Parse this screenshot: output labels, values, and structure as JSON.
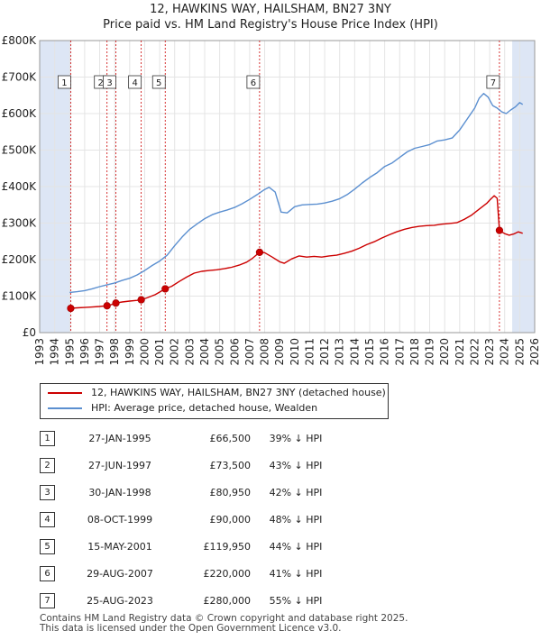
{
  "title": "12, HAWKINS WAY, HAILSHAM, BN27 3NY",
  "subtitle": "Price paid vs. HM Land Registry's House Price Index (HPI)",
  "colors": {
    "property": "#cc0000",
    "hpi": "#5b8fd0",
    "shade": "#dde6f5",
    "vline": "#cc0000"
  },
  "legend": {
    "property": "12, HAWKINS WAY, HAILSHAM, BN27 3NY (detached house)",
    "hpi": "HPI: Average price, detached house, Wealden"
  },
  "sales": [
    {
      "num": "1",
      "date": "27-JAN-1995",
      "price": "£66,500",
      "hpi": "39% ↓ HPI"
    },
    {
      "num": "2",
      "date": "27-JUN-1997",
      "price": "£73,500",
      "hpi": "43% ↓ HPI"
    },
    {
      "num": "3",
      "date": "30-JAN-1998",
      "price": "£80,950",
      "hpi": "42% ↓ HPI"
    },
    {
      "num": "4",
      "date": "08-OCT-1999",
      "price": "£90,000",
      "hpi": "48% ↓ HPI"
    },
    {
      "num": "5",
      "date": "15-MAY-2001",
      "price": "£119,950",
      "hpi": "44% ↓ HPI"
    },
    {
      "num": "6",
      "date": "29-AUG-2007",
      "price": "£220,000",
      "hpi": "41% ↓ HPI"
    },
    {
      "num": "7",
      "date": "25-AUG-2023",
      "price": "£280,000",
      "hpi": "55% ↓ HPI"
    }
  ],
  "footer": {
    "line1": "Contains HM Land Registry data © Crown copyright and database right 2025.",
    "line2": "This data is licensed under the Open Government Licence v3.0."
  },
  "chart_data": {
    "type": "line",
    "xlim": [
      1993,
      2026
    ],
    "ylim": [
      0,
      800000
    ],
    "x_ticks": [
      1993,
      1994,
      1995,
      1996,
      1997,
      1998,
      1999,
      2000,
      2001,
      2002,
      2003,
      2004,
      2005,
      2006,
      2007,
      2008,
      2009,
      2010,
      2011,
      2012,
      2013,
      2014,
      2015,
      2016,
      2017,
      2018,
      2019,
      2020,
      2021,
      2022,
      2023,
      2024,
      2025,
      2026
    ],
    "y_ticks": [
      {
        "value": 0,
        "label": "£0"
      },
      {
        "value": 100000,
        "label": "£100K"
      },
      {
        "value": 200000,
        "label": "£200K"
      },
      {
        "value": 300000,
        "label": "£300K"
      },
      {
        "value": 400000,
        "label": "£400K"
      },
      {
        "value": 500000,
        "label": "£500K"
      },
      {
        "value": 600000,
        "label": "£600K"
      },
      {
        "value": 700000,
        "label": "£700K"
      },
      {
        "value": 800000,
        "label": "£800K"
      }
    ],
    "grid": true,
    "shaded_ranges": [
      [
        1993,
        1995.07
      ],
      [
        2024.5,
        2026
      ]
    ],
    "markers": [
      {
        "label": "1",
        "x": 1995.07,
        "y": 66500
      },
      {
        "label": "2",
        "x": 1997.49,
        "y": 73500
      },
      {
        "label": "3",
        "x": 1998.08,
        "y": 80950
      },
      {
        "label": "4",
        "x": 1999.77,
        "y": 90000
      },
      {
        "label": "5",
        "x": 2001.37,
        "y": 119950
      },
      {
        "label": "6",
        "x": 2007.66,
        "y": 220000
      },
      {
        "label": "7",
        "x": 2023.65,
        "y": 280000
      }
    ],
    "series": [
      {
        "name": "12, HAWKINS WAY, HAILSHAM, BN27 3NY (detached house)",
        "x": [
          1995.07,
          1995.5,
          1996.0,
          1996.5,
          1997.0,
          1997.49,
          1997.8,
          1998.08,
          1998.5,
          1999.0,
          1999.5,
          1999.77,
          2000.2,
          2000.7,
          2001.0,
          2001.37,
          2001.8,
          2002.3,
          2002.8,
          2003.3,
          2003.8,
          2004.3,
          2004.8,
          2005.3,
          2005.8,
          2006.3,
          2006.8,
          2007.2,
          2007.66,
          2008.0,
          2008.5,
          2009.0,
          2009.3,
          2009.8,
          2010.3,
          2010.8,
          2011.3,
          2011.8,
          2012.3,
          2012.8,
          2013.3,
          2013.8,
          2014.3,
          2014.8,
          2015.3,
          2015.8,
          2016.3,
          2016.8,
          2017.3,
          2017.8,
          2018.3,
          2018.8,
          2019.3,
          2019.8,
          2020.3,
          2020.8,
          2021.3,
          2021.8,
          2022.3,
          2022.8,
          2023.0,
          2023.3,
          2023.5,
          2023.65,
          2024.0,
          2024.3,
          2024.6,
          2024.9,
          2025.2
        ],
        "y": [
          66500,
          68000,
          69000,
          70000,
          71500,
          73500,
          77000,
          80950,
          84000,
          86500,
          88500,
          90000,
          96000,
          104000,
          111000,
          119950,
          127000,
          140000,
          152000,
          163000,
          168000,
          170000,
          172000,
          175000,
          179000,
          185000,
          193000,
          204000,
          220000,
          219000,
          207000,
          194000,
          190000,
          202000,
          210000,
          207000,
          209000,
          207000,
          210000,
          212000,
          217000,
          223000,
          231000,
          241000,
          249000,
          259000,
          268000,
          276000,
          283000,
          288000,
          291000,
          293000,
          294000,
          297000,
          299000,
          301000,
          310000,
          322000,
          338000,
          354000,
          363000,
          375000,
          368000,
          280000,
          271000,
          267000,
          270000,
          276000,
          272000
        ]
      },
      {
        "name": "HPI: Average price, detached house, Wealden",
        "x": [
          1995.0,
          1995.5,
          1996.0,
          1996.5,
          1997.0,
          1997.5,
          1998.0,
          1998.5,
          1999.0,
          1999.5,
          2000.0,
          2000.5,
          2001.0,
          2001.5,
          2002.0,
          2002.5,
          2003.0,
          2003.5,
          2004.0,
          2004.5,
          2005.0,
          2005.5,
          2006.0,
          2006.5,
          2007.0,
          2007.5,
          2008.0,
          2008.3,
          2008.7,
          2009.1,
          2009.5,
          2010.0,
          2010.5,
          2011.0,
          2011.5,
          2012.0,
          2012.5,
          2013.0,
          2013.5,
          2014.0,
          2014.5,
          2015.0,
          2015.5,
          2016.0,
          2016.5,
          2017.0,
          2017.5,
          2018.0,
          2018.5,
          2019.0,
          2019.5,
          2020.0,
          2020.5,
          2021.0,
          2021.5,
          2022.0,
          2022.3,
          2022.6,
          2022.9,
          2023.2,
          2023.5,
          2023.8,
          2024.1,
          2024.4,
          2024.7,
          2025.0,
          2025.2
        ],
        "y": [
          110000,
          112000,
          115000,
          120000,
          126000,
          131000,
          136000,
          143000,
          149000,
          158000,
          170000,
          184000,
          196000,
          212000,
          238000,
          262000,
          283000,
          298000,
          312000,
          323000,
          330000,
          336000,
          343000,
          353000,
          365000,
          378000,
          392000,
          398000,
          385000,
          330000,
          328000,
          345000,
          350000,
          351000,
          352000,
          355000,
          360000,
          367000,
          378000,
          393000,
          410000,
          425000,
          438000,
          455000,
          465000,
          480000,
          495000,
          505000,
          510000,
          515000,
          525000,
          528000,
          533000,
          555000,
          585000,
          615000,
          642000,
          655000,
          645000,
          622000,
          615000,
          605000,
          600000,
          610000,
          618000,
          630000,
          625000
        ]
      }
    ]
  }
}
